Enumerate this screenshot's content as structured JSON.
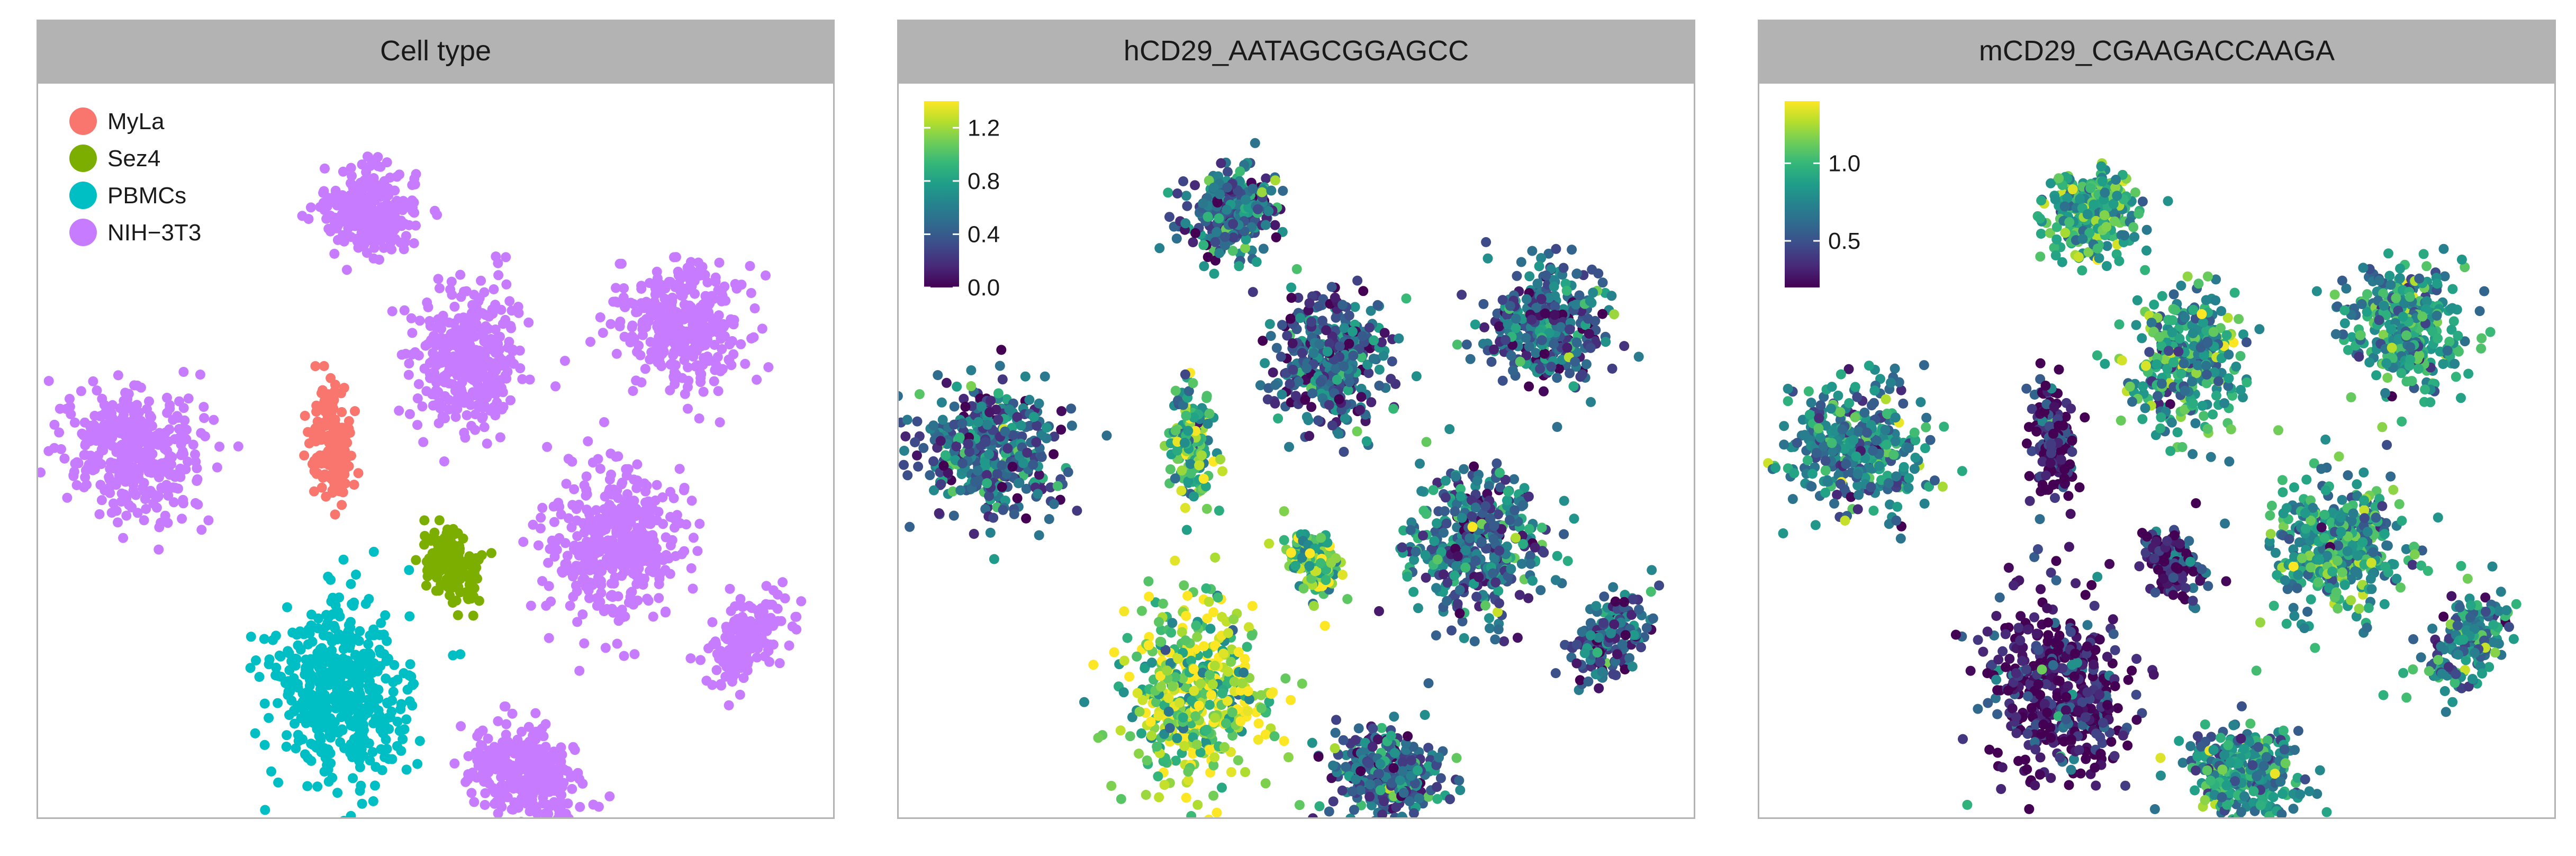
{
  "chart_data": [
    {
      "type": "scatter",
      "title": "Cell type",
      "legend_position": "top-left",
      "categories": [
        {
          "name": "MyLa",
          "color": "#F8766D"
        },
        {
          "name": "Sez4",
          "color": "#7CAE00"
        },
        {
          "name": "PBMCs",
          "color": "#00BFC4"
        },
        {
          "name": "NIH−3T3",
          "color": "#C77CFF"
        }
      ],
      "clusters": [
        {
          "category": "NIH−3T3",
          "label": "NIH−3T3 cluster 1"
        },
        {
          "category": "NIH−3T3",
          "label": "NIH−3T3 cluster 2"
        },
        {
          "category": "NIH−3T3",
          "label": "NIH−3T3 cluster 3"
        },
        {
          "category": "NIH−3T3",
          "label": "NIH−3T3 cluster 4"
        },
        {
          "category": "MyLa",
          "label": "MyLa cluster"
        },
        {
          "category": "Sez4",
          "label": "Sez4 cluster"
        },
        {
          "category": "NIH−3T3",
          "label": "NIH−3T3 cluster 5"
        },
        {
          "category": "NIH−3T3",
          "label": "NIH−3T3 cluster 6"
        },
        {
          "category": "PBMCs",
          "label": "PBMCs cluster"
        },
        {
          "category": "NIH−3T3",
          "label": "NIH−3T3 cluster 7"
        }
      ],
      "grid": false
    },
    {
      "type": "scatter",
      "title": "hCD29_AATAGCGGAGCC",
      "colorscale": "viridis",
      "colorbar": {
        "ticks": [
          "0.0",
          "0.4",
          "0.8",
          "1.2"
        ],
        "tick_values": [
          0.0,
          0.4,
          0.8,
          1.2
        ],
        "range": [
          0,
          1.4
        ]
      },
      "cluster_mean_expression": [
        0.5,
        0.4,
        0.45,
        0.5,
        0.9,
        1.0,
        0.5,
        0.4,
        1.15,
        0.45
      ],
      "grid": false
    },
    {
      "type": "scatter",
      "title": "mCD29_CGAAGACCAAGA",
      "colorscale": "viridis",
      "colorbar": {
        "ticks": [
          "0.5",
          "1.0"
        ],
        "tick_values": [
          0.5,
          1.0
        ],
        "range": [
          0.2,
          1.4
        ]
      },
      "cluster_mean_expression": [
        0.95,
        0.85,
        0.85,
        0.75,
        0.3,
        0.35,
        0.85,
        0.75,
        0.3,
        0.8
      ],
      "grid": false
    }
  ]
}
